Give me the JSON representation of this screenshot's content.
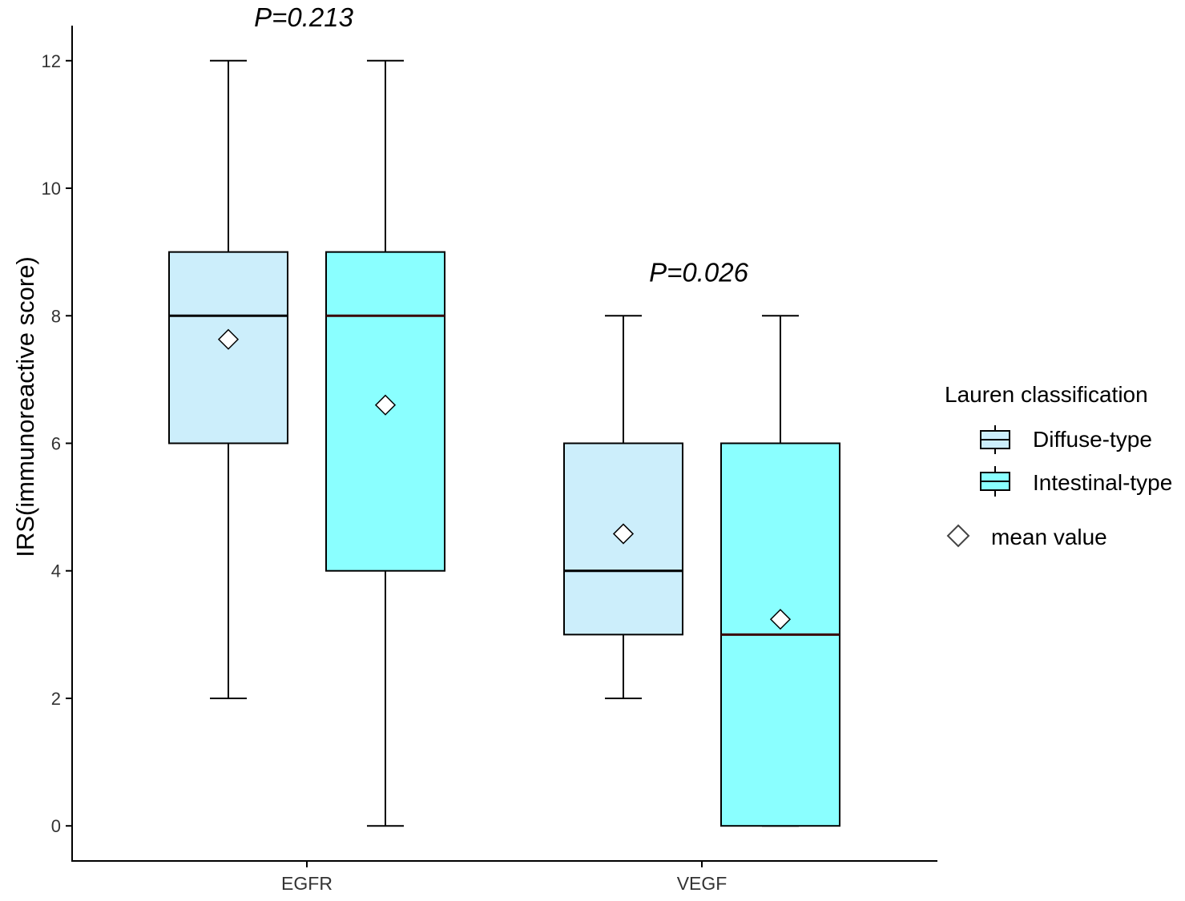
{
  "chart_data": {
    "type": "box",
    "title": "",
    "xlabel": "",
    "ylabel": "IRS(immunoreactive score)",
    "ylim": [
      -0.55,
      12.55
    ],
    "yticks": [
      0,
      2,
      4,
      6,
      8,
      10,
      12
    ],
    "grid": false,
    "categories": [
      "EGFR",
      "VEGF"
    ],
    "series": [
      {
        "name": "Diffuse-type",
        "color": "#CCEEFB",
        "boxes": [
          {
            "category": "EGFR",
            "min": 2,
            "q1": 6,
            "median": 8,
            "q3": 9,
            "max": 12,
            "mean": 7.63
          },
          {
            "category": "VEGF",
            "min": 2,
            "q1": 3,
            "median": 4,
            "q3": 6,
            "max": 8,
            "mean": 4.58
          }
        ]
      },
      {
        "name": "Intestinal-type",
        "color": "#8AFFFF",
        "boxes": [
          {
            "category": "EGFR",
            "min": 0,
            "q1": 4,
            "median": 8,
            "q3": 9,
            "max": 12,
            "mean": 6.6
          },
          {
            "category": "VEGF",
            "min": 0,
            "q1": 0,
            "median": 3,
            "q3": 6,
            "max": 8,
            "mean": 3.24
          }
        ]
      }
    ],
    "annotations": [
      {
        "category": "EGFR",
        "text": "P=0.213"
      },
      {
        "category": "VEGF",
        "text": "P=0.026"
      }
    ],
    "legend": {
      "title": "Lauren classification",
      "position": "right",
      "mean_label": "mean value"
    }
  }
}
